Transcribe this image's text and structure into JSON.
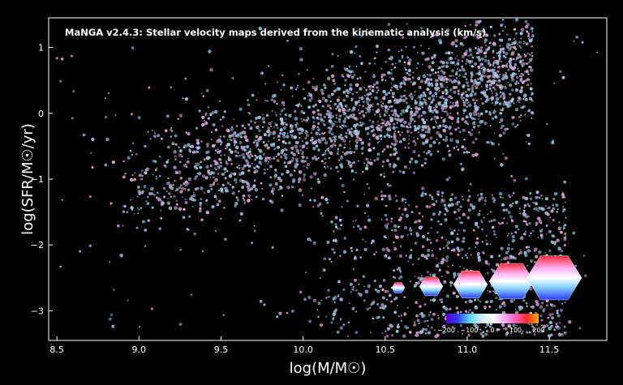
{
  "chart_data": {
    "type": "scatter",
    "title": "MaNGA v2.4.3: Stellar velocity maps derived from the kinematic analysis (km/s)",
    "xlabel": "log(M/M☉)",
    "ylabel": "log(SFR/M☉/yr)",
    "xlim": [
      8.45,
      11.85
    ],
    "ylim": [
      -3.45,
      1.45
    ],
    "xticks": [
      "8.5",
      "9.0",
      "9.5",
      "10.0",
      "10.5",
      "11.0",
      "11.5"
    ],
    "yticks": [
      "1",
      "0",
      "−1",
      "−2",
      "−3"
    ],
    "grid": false,
    "background": "#000000",
    "colorbar": {
      "ticks": [
        "−200",
        "−100",
        "0",
        "100",
        "200"
      ],
      "range": [
        -200,
        200
      ],
      "colors": [
        "#5a00c8",
        "#2a3cff",
        "#5ad2ff",
        "#c8eeee",
        "#ffffff",
        "#ffb0f5",
        "#ff60c0",
        "#ff2a2a",
        "#ffaa00"
      ]
    },
    "featured_galaxies": [
      {
        "x": 10.58,
        "y": -2.65
      },
      {
        "x": 10.78,
        "y": -2.63
      },
      {
        "x": 11.02,
        "y": -2.6
      },
      {
        "x": 11.27,
        "y": -2.55
      },
      {
        "x": 11.53,
        "y": -2.5
      }
    ],
    "density_model": {
      "star_forming_sequence": {
        "x_range": [
          8.9,
          11.4
        ],
        "slope": 0.75,
        "intercept_at_10": -0.35,
        "scatter": 0.45
      },
      "quiescent_cloud": {
        "x_range": [
          10.0,
          11.6
        ],
        "y_range": [
          -3.4,
          -1.2
        ]
      },
      "n_points": 3400
    }
  }
}
